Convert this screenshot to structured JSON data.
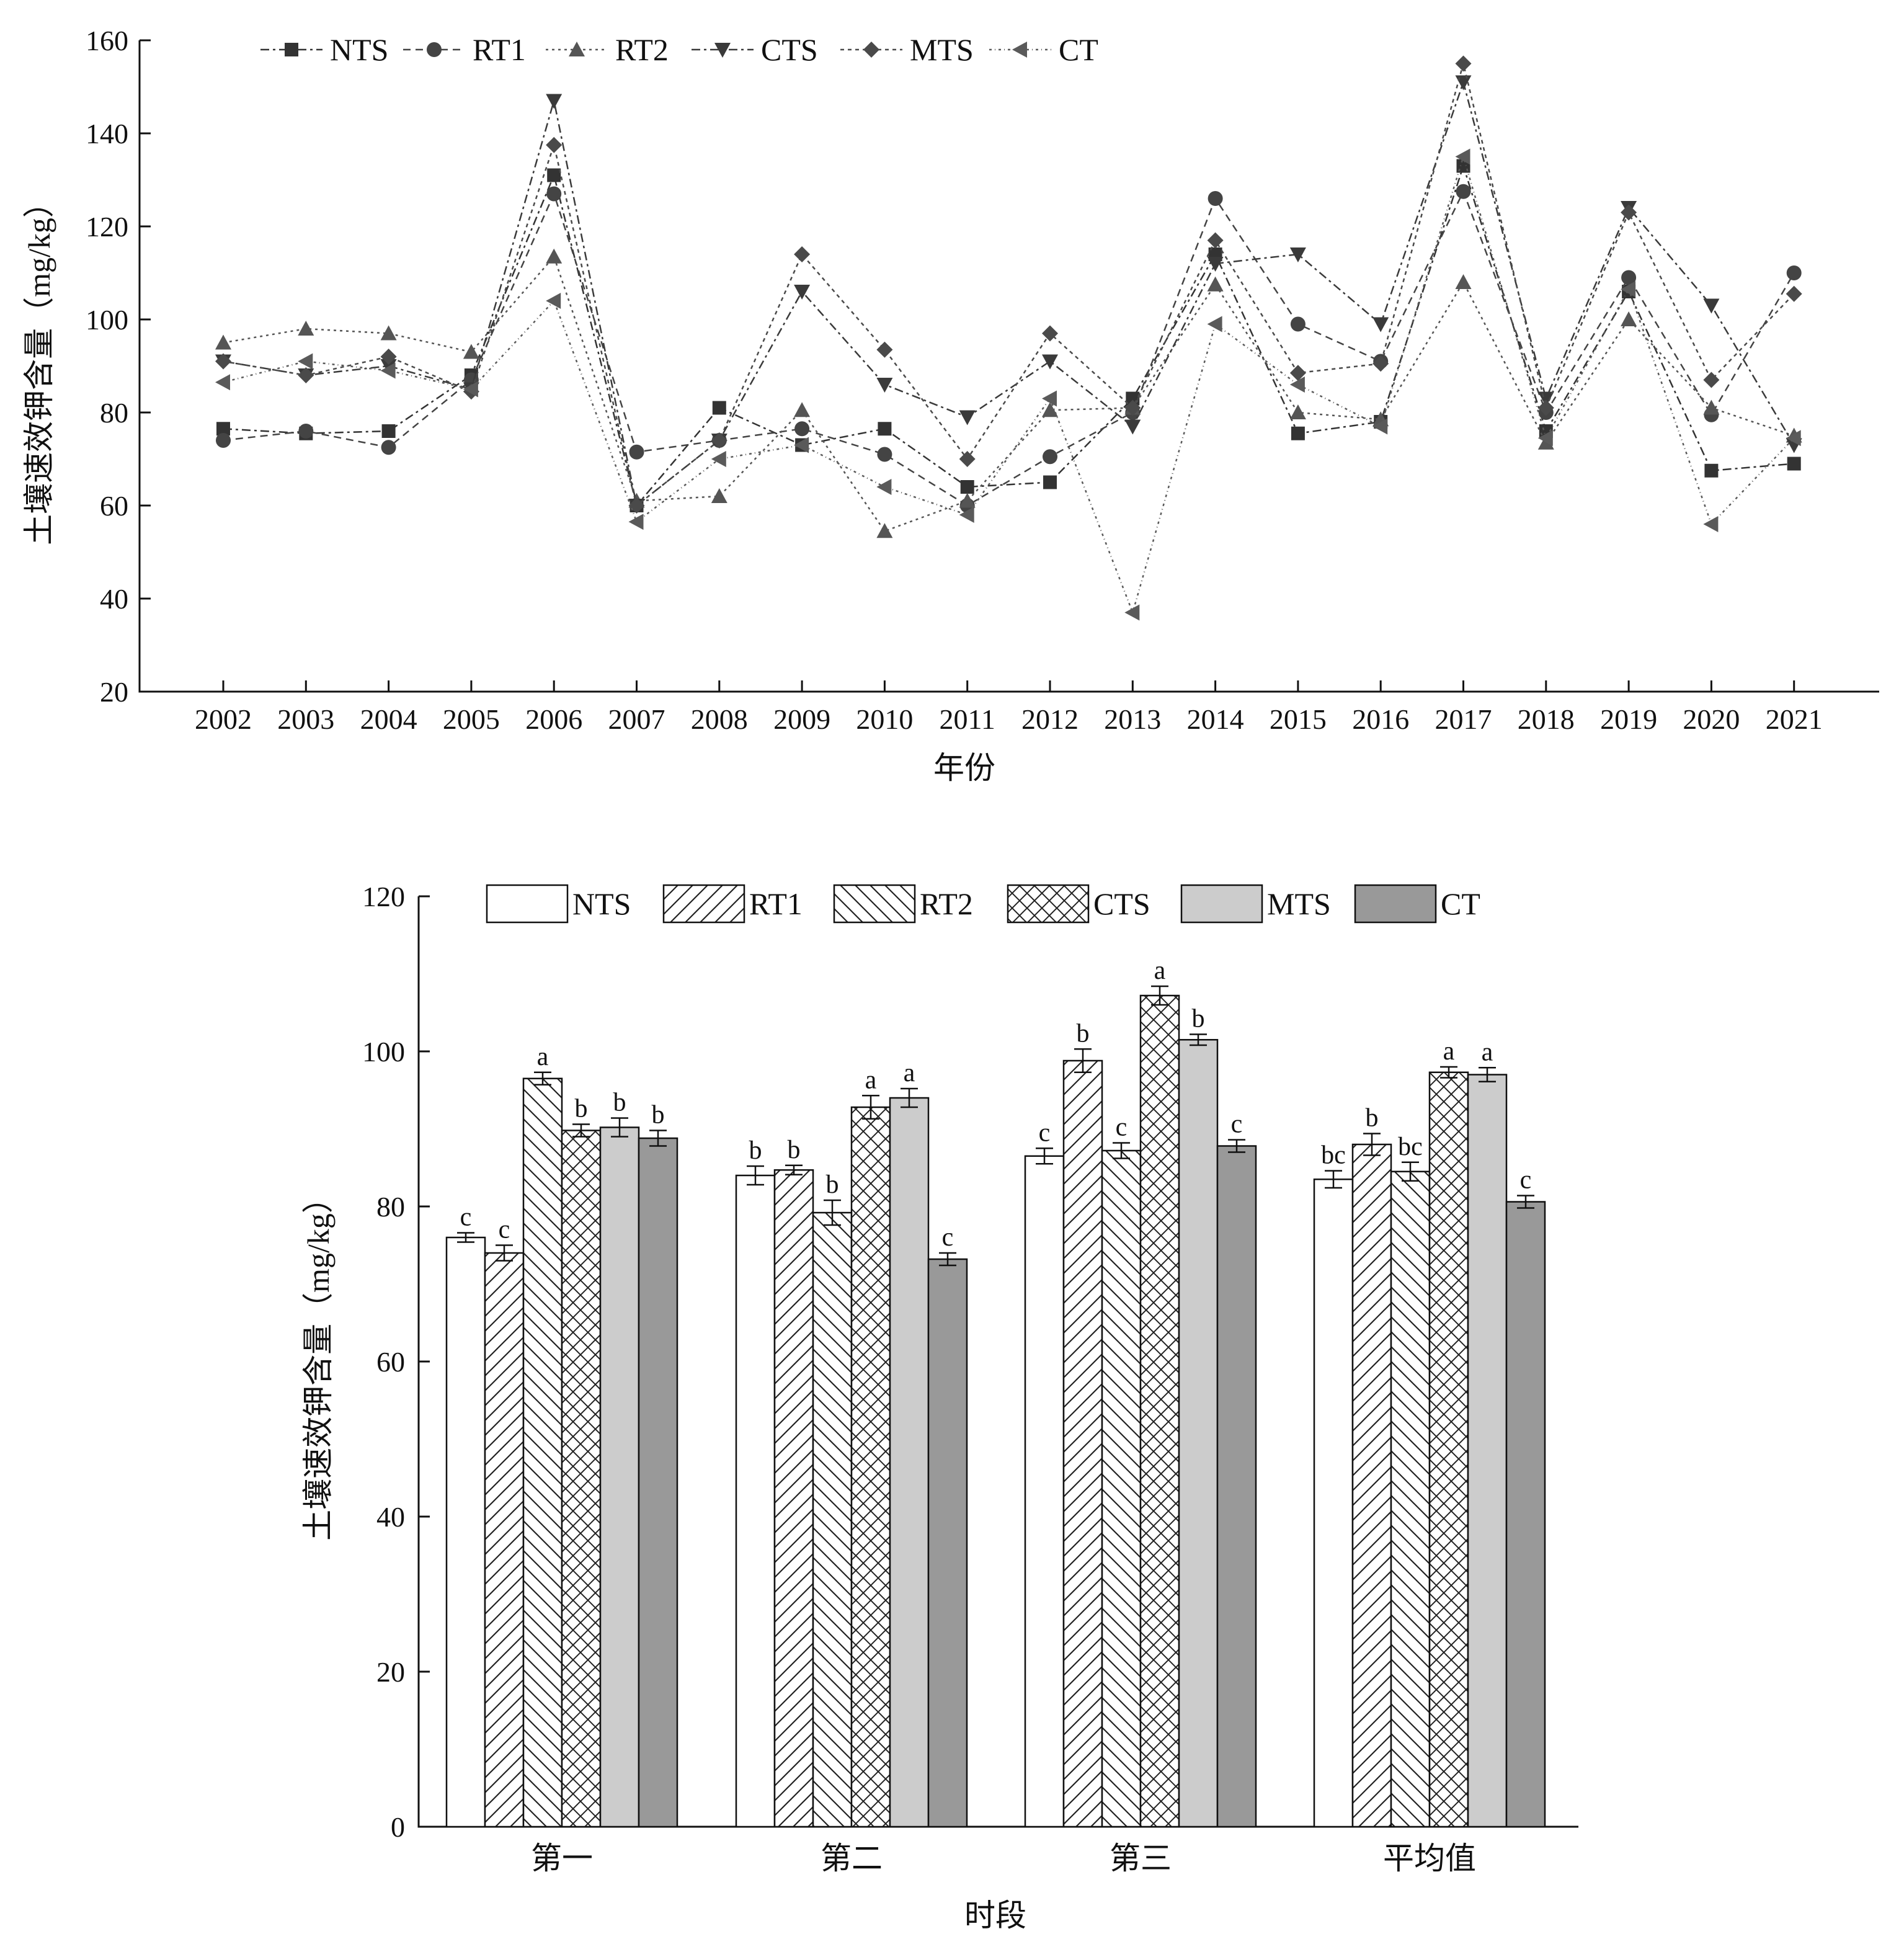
{
  "colors": {
    "NTS": "#ffffff",
    "RT1": "#ffffff",
    "RT2": "#ffffff",
    "CTS": "#ffffff",
    "MTS": "#cccccc",
    "CT": "#999999",
    "line_NTS": "#333333",
    "line_RT1": "#444444",
    "line_RT2": "#555555",
    "line_CTS": "#3a3a3a",
    "line_MTS": "#4a4a4a",
    "line_CT": "#5a5a5a"
  },
  "chart_data": [
    {
      "type": "line",
      "xlabel": "年份",
      "ylabel": "土壤速效钾含量（mg/kg）",
      "ylim": [
        20,
        160
      ],
      "yticks": [
        20,
        40,
        60,
        80,
        100,
        120,
        140,
        160
      ],
      "legend_position": "top-left",
      "grid": false,
      "x": [
        "2002",
        "2003",
        "2004",
        "2005",
        "2006",
        "2007",
        "2008",
        "2009",
        "2010",
        "2011",
        "2012",
        "2013",
        "2014",
        "2015",
        "2016",
        "2017",
        "2018",
        "2019",
        "2020",
        "2021"
      ],
      "series": [
        {
          "name": "NTS",
          "marker": "square",
          "values": [
            76.5,
            75.5,
            76,
            88,
            131,
            60,
            81,
            73,
            76.5,
            64,
            65,
            83,
            114,
            75.5,
            78,
            133,
            76,
            106,
            67.5,
            69
          ]
        },
        {
          "name": "RT1",
          "marker": "circle",
          "values": [
            74,
            76,
            72.5,
            87,
            127,
            71.5,
            74,
            76.5,
            71,
            60,
            70.5,
            80,
            126,
            99,
            91,
            127.5,
            80,
            109,
            79.5,
            110
          ]
        },
        {
          "name": "RT2",
          "marker": "triangle-up",
          "values": [
            95,
            98,
            97,
            93,
            113.5,
            61,
            62,
            80.5,
            54.5,
            61,
            80.5,
            81,
            107.5,
            80,
            78.5,
            108,
            73.5,
            100,
            81,
            75
          ]
        },
        {
          "name": "CTS",
          "marker": "triangle-down",
          "values": [
            91,
            88,
            90,
            85,
            147,
            60,
            74,
            106,
            86,
            79,
            91,
            77,
            112,
            114,
            99,
            151,
            83,
            124,
            103,
            73
          ]
        },
        {
          "name": "MTS",
          "marker": "diamond",
          "values": [
            91,
            88,
            92,
            84.5,
            137.5,
            60,
            74,
            114,
            93.5,
            70,
            97,
            81,
            117,
            88.5,
            90.5,
            155,
            81,
            123,
            87,
            105.5
          ]
        },
        {
          "name": "CT",
          "marker": "triangle-left",
          "values": [
            86.5,
            91,
            89,
            85,
            104,
            56.5,
            70,
            73,
            64,
            58,
            83,
            37,
            99,
            86,
            77,
            135,
            74.5,
            106.5,
            56,
            74.5
          ]
        }
      ]
    },
    {
      "type": "bar",
      "xlabel": "时段",
      "ylabel": "土壤速效钾含量（mg/kg）",
      "ylim": [
        0,
        120
      ],
      "yticks": [
        0,
        20,
        40,
        60,
        80,
        100,
        120
      ],
      "legend_position": "top",
      "grid": false,
      "categories": [
        "第一",
        "第二",
        "第三",
        "平均值"
      ],
      "series": [
        {
          "name": "NTS",
          "pattern": "none",
          "values": [
            76,
            84,
            86.5,
            83.5
          ],
          "errors": [
            0.6,
            1.2,
            1.0,
            1.1
          ],
          "labels": [
            "c",
            "b",
            "c",
            "bc"
          ]
        },
        {
          "name": "RT1",
          "pattern": "forward-hatch",
          "values": [
            74,
            84.7,
            98.8,
            88
          ],
          "errors": [
            1.0,
            0.6,
            1.5,
            1.4
          ],
          "labels": [
            "c",
            "b",
            "b",
            "b"
          ]
        },
        {
          "name": "RT2",
          "pattern": "back-hatch",
          "values": [
            96.5,
            79.2,
            87.2,
            84.5
          ],
          "errors": [
            0.8,
            1.6,
            1.0,
            1.2
          ],
          "labels": [
            "a",
            "b",
            "c",
            "bc"
          ]
        },
        {
          "name": "CTS",
          "pattern": "cross-hatch",
          "values": [
            89.8,
            92.8,
            107.2,
            97.3
          ],
          "errors": [
            0.8,
            1.5,
            1.2,
            0.7
          ],
          "labels": [
            "b",
            "a",
            "a",
            "a"
          ]
        },
        {
          "name": "MTS",
          "pattern": "light-gray",
          "values": [
            90.2,
            94,
            101.5,
            97
          ],
          "errors": [
            1.2,
            1.2,
            0.7,
            0.9
          ],
          "labels": [
            "b",
            "a",
            "b",
            "a"
          ]
        },
        {
          "name": "CT",
          "pattern": "dark-gray",
          "values": [
            88.8,
            73.2,
            87.8,
            80.6
          ],
          "errors": [
            1.0,
            0.8,
            0.8,
            0.8
          ],
          "labels": [
            "b",
            "c",
            "c",
            "c"
          ]
        }
      ]
    }
  ]
}
